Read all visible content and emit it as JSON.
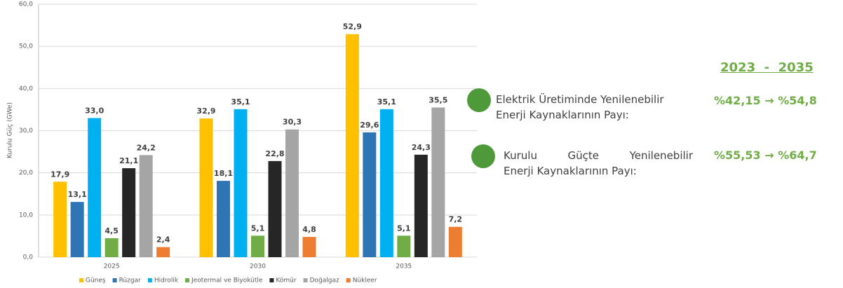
{
  "chart_data": {
    "type": "bar",
    "y_label": "Kurulu Güç (GWe)",
    "categories": [
      "2025",
      "2030",
      "2035"
    ],
    "series": [
      {
        "name": "Güneş",
        "color": "#ffc000",
        "values": [
          17.9,
          32.9,
          52.9
        ],
        "value_labels": [
          "17,9",
          "32,9",
          "52,9"
        ]
      },
      {
        "name": "Rüzgar",
        "color": "#2e75b6",
        "values": [
          13.1,
          18.1,
          29.6
        ],
        "value_labels": [
          "13,1",
          "18,1",
          "29,6"
        ]
      },
      {
        "name": "Hidrolik",
        "color": "#00b0f0",
        "values": [
          33.0,
          35.1,
          35.1
        ],
        "value_labels": [
          "33,0",
          "35,1",
          "35,1"
        ]
      },
      {
        "name": "Jeotermal ve Biyokütle",
        "color": "#70ad47",
        "values": [
          4.5,
          5.1,
          5.1
        ],
        "value_labels": [
          "4,5",
          "5,1",
          "5,1"
        ]
      },
      {
        "name": "Kömür",
        "color": "#262626",
        "values": [
          21.1,
          22.8,
          24.3
        ],
        "value_labels": [
          "21,1",
          "22,8",
          "24,3"
        ]
      },
      {
        "name": "Doğalgaz",
        "color": "#a5a5a5",
        "values": [
          24.2,
          30.3,
          35.5
        ],
        "value_labels": [
          "24,2",
          "30,3",
          "35,5"
        ]
      },
      {
        "name": "Nükleer",
        "color": "#ed7d31",
        "values": [
          2.4,
          4.8,
          7.2
        ],
        "value_labels": [
          "2,4",
          "4,8",
          "7,2"
        ]
      }
    ],
    "ylim": [
      0,
      60
    ],
    "yticks": [
      {
        "value": 0,
        "label": "0,0"
      },
      {
        "value": 10,
        "label": "10,0"
      },
      {
        "value": 20,
        "label": "20,0"
      },
      {
        "value": 30,
        "label": "30,0"
      },
      {
        "value": 40,
        "label": "40,0"
      },
      {
        "value": 50,
        "label": "50,0"
      },
      {
        "value": 60,
        "label": "60,0"
      }
    ],
    "grid": true,
    "legend": "bottom"
  },
  "side_panel": {
    "period": "2023  -  2035",
    "rows": [
      {
        "lines": [
          "Elektrik Üretiminde Yenilenebilir",
          "Enerji Kaynaklarının Payı:"
        ],
        "change": "%42,15 → %54,8"
      },
      {
        "lines": [
          "Kurulu Güçte Yenilenebilir",
          "Enerji Kaynaklarının Payı:"
        ],
        "change": "%55,53 → %64,7"
      }
    ]
  }
}
